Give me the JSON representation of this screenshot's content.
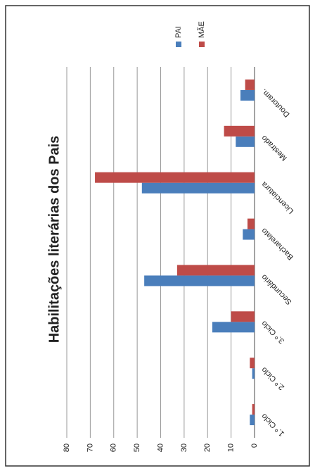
{
  "chart_data": {
    "type": "bar",
    "title": "Habilitações literárias dos Pais",
    "categories": [
      "1.º Ciclo",
      "2.º Ciclo",
      "3.º Ciclo",
      "Secundário",
      "Bacharelato",
      "Licenciatura",
      "Mestrado",
      "Doutoram."
    ],
    "series": [
      {
        "name": "PAI",
        "color": "#4a7ebb",
        "values": [
          2,
          1,
          18,
          47,
          5,
          48,
          8,
          6
        ]
      },
      {
        "name": "MÃE",
        "color": "#be4b48",
        "values": [
          1,
          2,
          10,
          33,
          3,
          68,
          13,
          4
        ]
      }
    ],
    "ylim": [
      0,
      80
    ],
    "yticks": [
      0,
      10,
      20,
      30,
      40,
      50,
      60,
      70,
      80
    ],
    "grid": true
  }
}
